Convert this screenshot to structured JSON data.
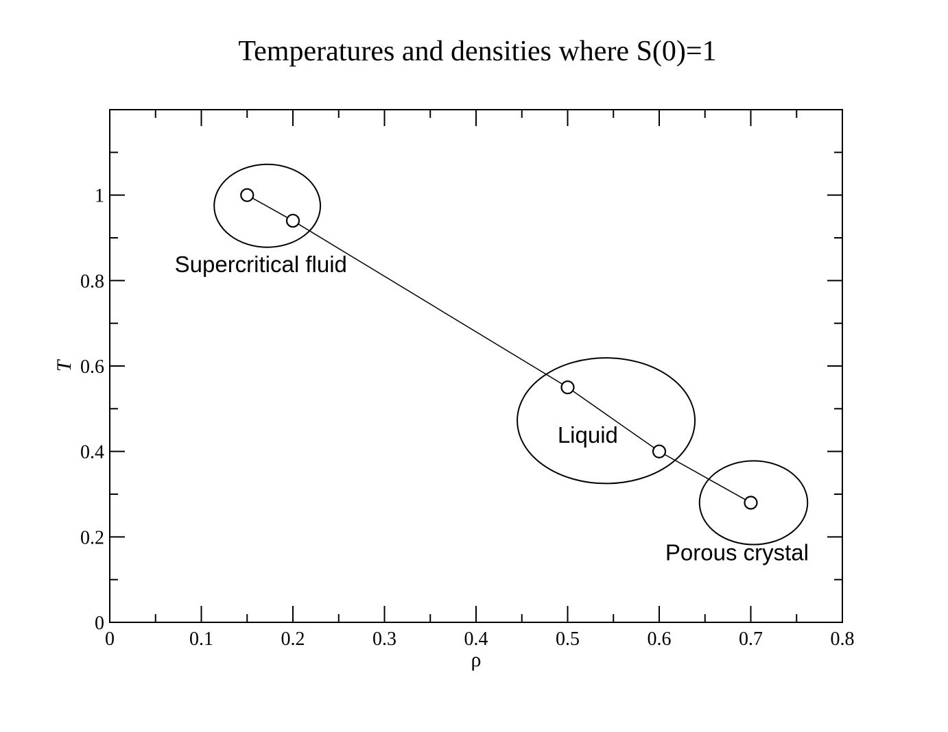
{
  "chart_data": {
    "type": "line",
    "title": "Temperatures and densities where S(0)=1",
    "xlabel": "ρ",
    "ylabel": "T",
    "xlim": [
      0,
      0.8
    ],
    "ylim": [
      0,
      1.2
    ],
    "xticks": [
      0,
      0.1,
      0.2,
      0.3,
      0.4,
      0.5,
      0.6,
      0.7,
      0.8
    ],
    "xtick_labels": [
      "0",
      "0.1",
      "0.2",
      "0.3",
      "0.4",
      "0.5",
      "0.6",
      "0.7",
      "0.8"
    ],
    "yticks": [
      0,
      0.2,
      0.4,
      0.6,
      0.8,
      1
    ],
    "ytick_labels": [
      "0",
      "0.2",
      "0.4",
      "0.6",
      "0.8",
      "1"
    ],
    "grid": false,
    "series": [
      {
        "x": [
          0.15,
          0.2,
          0.5,
          0.6,
          0.7
        ],
        "y": [
          1.0,
          0.94,
          0.55,
          0.4,
          0.28
        ],
        "marker": "open-circle",
        "color": "#000000"
      }
    ],
    "annotations": [
      {
        "text": "Supercritical fluid",
        "x": 0.165,
        "y": 0.82,
        "ellipse": {
          "cx": 0.172,
          "cy": 0.975,
          "rx": 0.058,
          "ry": 0.097
        }
      },
      {
        "text": "Liquid",
        "x": 0.522,
        "y": 0.42,
        "ellipse": {
          "cx": 0.542,
          "cy": 0.472,
          "rx": 0.097,
          "ry": 0.147
        }
      },
      {
        "text": "Porous crystal",
        "x": 0.685,
        "y": 0.145,
        "ellipse": {
          "cx": 0.703,
          "cy": 0.28,
          "rx": 0.059,
          "ry": 0.098
        }
      }
    ]
  }
}
